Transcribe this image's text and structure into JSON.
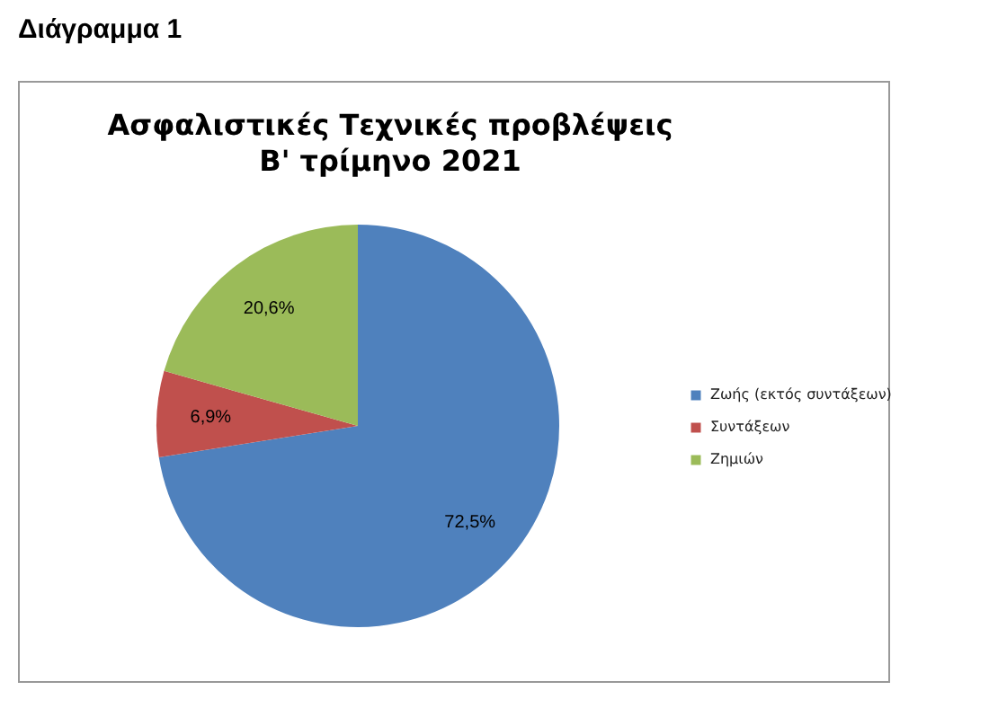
{
  "chart_data": {
    "type": "pie",
    "title": "Ασφαλιστικές Τεχνικές προβλέψεις",
    "subtitle": "B' τρίμηνο 2021",
    "annotations": [
      "Διάγραμμα 1"
    ],
    "categories": [
      "Ζωής (εκτός συντάξεων)",
      "Συντάξεων",
      "Ζημιών"
    ],
    "values": [
      72.5,
      6.9,
      20.6
    ],
    "colors": [
      "#4f81bd",
      "#c0504d",
      "#9bbb59"
    ],
    "value_labels": [
      "72,5%",
      "6,9%",
      "20,6%"
    ],
    "legend": "right"
  }
}
